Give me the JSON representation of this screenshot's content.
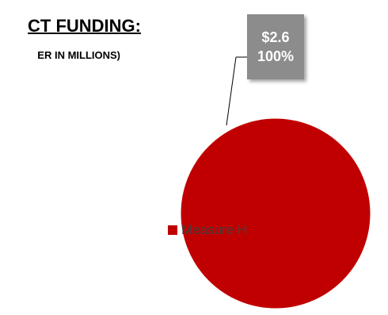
{
  "chart_data": {
    "type": "pie",
    "title": "CT FUNDING:",
    "subtitle": "ER IN MILLIONS)",
    "categories": [
      "Measure H"
    ],
    "values": [
      2.6
    ],
    "percentages": [
      100
    ],
    "data_labels": [
      {
        "value": "$2.6",
        "percent": "100%"
      }
    ],
    "legend": {
      "placement": "left",
      "entries": [
        "Measure H"
      ]
    },
    "colors": {
      "Measure H": "#c00000",
      "label_box": "#8c8c8c"
    }
  }
}
